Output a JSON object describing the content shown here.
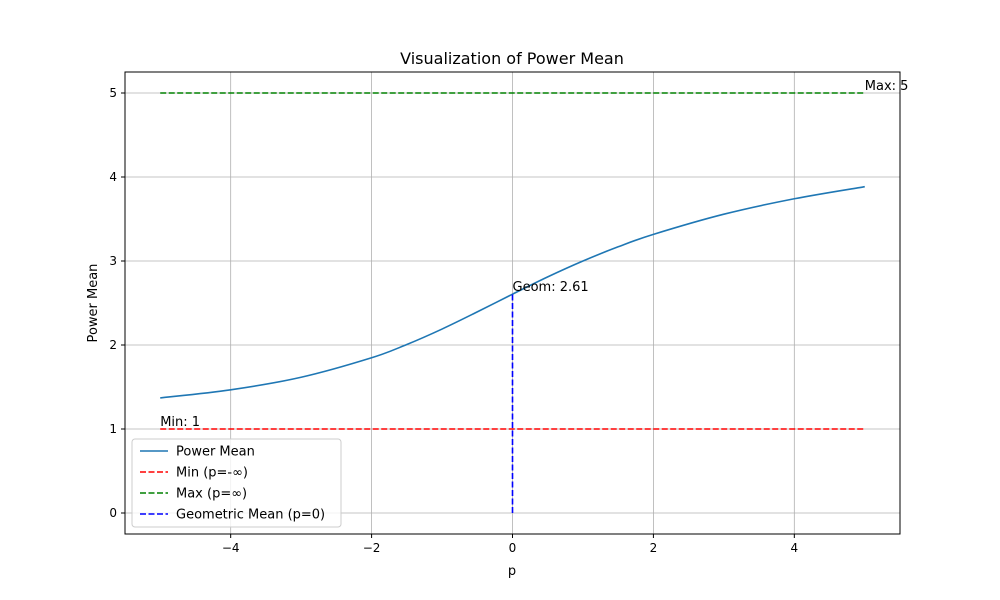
{
  "chart_data": {
    "type": "line",
    "title": "Visualization of Power Mean",
    "xlabel": "p",
    "ylabel": "Power Mean",
    "xlim": [
      -5.5,
      5.5
    ],
    "ylim": [
      -0.25,
      5.25
    ],
    "xticks": [
      -4,
      -2,
      0,
      2,
      4
    ],
    "xtick_labels": [
      "−4",
      "−2",
      "0",
      "2",
      "4"
    ],
    "yticks": [
      0,
      1,
      2,
      3,
      4,
      5
    ],
    "ytick_labels": [
      "0",
      "1",
      "2",
      "3",
      "4",
      "5"
    ],
    "grid": true,
    "legend_placement": "lower-left",
    "series": [
      {
        "name": "Power Mean",
        "color": "#1f77b4",
        "style": "solid",
        "x": [
          -5,
          -4,
          -3,
          -2,
          -1.5,
          -1,
          -0.5,
          0,
          0.5,
          1,
          1.5,
          2,
          3,
          4,
          5
        ],
        "y": [
          1.37,
          1.467,
          1.616,
          1.848,
          2.006,
          2.19,
          2.394,
          2.605,
          2.811,
          3.0,
          3.169,
          3.317,
          3.557,
          3.741,
          3.885
        ]
      },
      {
        "name": "Min (p=-∞)",
        "color": "#ff0000",
        "style": "dashed",
        "x": [
          -5,
          5
        ],
        "y": [
          1,
          1
        ]
      },
      {
        "name": "Max (p=∞)",
        "color": "#008000",
        "style": "dashed",
        "x": [
          -5,
          5
        ],
        "y": [
          5,
          5
        ]
      },
      {
        "name": "Geometric Mean (p=0)",
        "color": "#0000ff",
        "style": "dashed",
        "x": [
          0,
          0
        ],
        "y": [
          0,
          2.605
        ]
      }
    ],
    "annotations": [
      {
        "text": "Max: 5",
        "x": 5,
        "y": 5
      },
      {
        "text": "Min: 1",
        "x": -5,
        "y": 1
      },
      {
        "text": "Geom: 2.61",
        "x": 0,
        "y": 2.61
      }
    ]
  }
}
